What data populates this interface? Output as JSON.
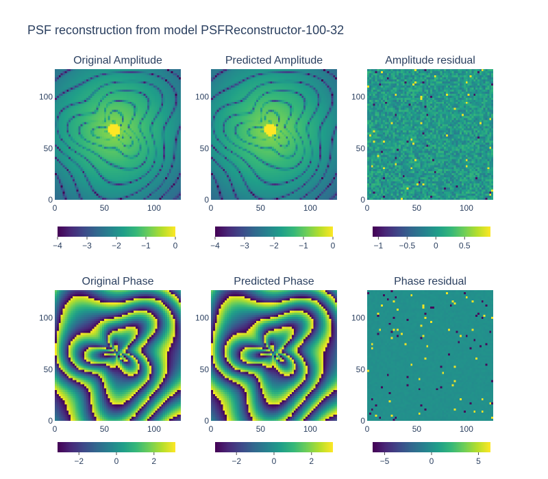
{
  "title": "PSF reconstruction from model PSFReconstructor-100-32",
  "colors": {
    "text": "#2a3f5f",
    "colorscale": [
      "#440154",
      "#482878",
      "#3e4989",
      "#31688e",
      "#26828e",
      "#1f9e89",
      "#35b779",
      "#6ece58",
      "#b5de2b",
      "#fde725"
    ]
  },
  "chart_data": [
    {
      "type": "heatmap",
      "title": "Original Amplitude",
      "x_ticks": [
        0,
        50,
        100
      ],
      "y_ticks": [
        0,
        50,
        100
      ],
      "xlim": [
        0,
        127
      ],
      "ylim": [
        0,
        127
      ],
      "zlim": [
        -4,
        0
      ],
      "colorbar_ticks": [
        -4,
        -3,
        -2,
        -1,
        0
      ],
      "colorbar_labels": [
        "−4",
        "−3",
        "−2",
        "−1",
        "0"
      ],
      "pattern": "amplitude",
      "center": [
        60,
        68
      ]
    },
    {
      "type": "heatmap",
      "title": "Predicted Amplitude",
      "x_ticks": [
        0,
        50,
        100
      ],
      "y_ticks": [
        0,
        50,
        100
      ],
      "xlim": [
        0,
        127
      ],
      "ylim": [
        0,
        127
      ],
      "zlim": [
        -4,
        0
      ],
      "colorbar_ticks": [
        -4,
        -3,
        -2,
        -1,
        0
      ],
      "colorbar_labels": [
        "−4",
        "−3",
        "−2",
        "−1",
        "0"
      ],
      "pattern": "amplitude",
      "center": [
        60,
        68
      ]
    },
    {
      "type": "heatmap",
      "title": "Amplitude residual",
      "x_ticks": [
        0,
        50,
        100
      ],
      "y_ticks": [
        0,
        50,
        100
      ],
      "xlim": [
        0,
        127
      ],
      "ylim": [
        0,
        127
      ],
      "zlim": [
        -1.1,
        0.95
      ],
      "colorbar_ticks": [
        -1,
        -0.5,
        0,
        0.5
      ],
      "colorbar_labels": [
        "−1",
        "−0.5",
        "0",
        "0.5"
      ],
      "pattern": "residual_small"
    },
    {
      "type": "heatmap",
      "title": "Original Phase",
      "x_ticks": [
        0,
        50,
        100
      ],
      "y_ticks": [
        0,
        50,
        100
      ],
      "xlim": [
        0,
        127
      ],
      "ylim": [
        0,
        127
      ],
      "zlim": [
        -3.14,
        3.14
      ],
      "colorbar_ticks": [
        -2,
        0,
        2
      ],
      "colorbar_labels": [
        "−2",
        "0",
        "2"
      ],
      "pattern": "phase",
      "center": [
        62,
        66
      ]
    },
    {
      "type": "heatmap",
      "title": "Predicted Phase",
      "x_ticks": [
        0,
        50,
        100
      ],
      "y_ticks": [
        0,
        50,
        100
      ],
      "xlim": [
        0,
        127
      ],
      "ylim": [
        0,
        127
      ],
      "zlim": [
        -3.14,
        3.14
      ],
      "colorbar_ticks": [
        -2,
        0,
        2
      ],
      "colorbar_labels": [
        "−2",
        "0",
        "2"
      ],
      "pattern": "phase",
      "center": [
        62,
        66
      ]
    },
    {
      "type": "heatmap",
      "title": "Phase residual",
      "x_ticks": [
        0,
        50,
        100
      ],
      "y_ticks": [
        0,
        50,
        100
      ],
      "xlim": [
        0,
        127
      ],
      "ylim": [
        0,
        127
      ],
      "zlim": [
        -6.28,
        6.28
      ],
      "colorbar_ticks": [
        -5,
        0,
        5
      ],
      "colorbar_labels": [
        "−5",
        "0",
        "5"
      ],
      "pattern": "residual_spikes"
    }
  ]
}
